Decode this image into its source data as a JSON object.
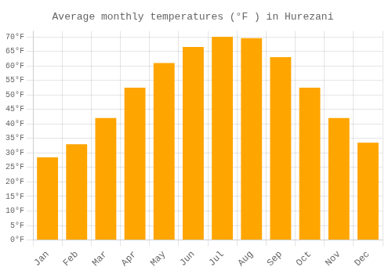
{
  "chart_data": {
    "type": "bar",
    "title": "Average monthly temperatures (°F ) in Hurezani",
    "categories": [
      "Jan",
      "Feb",
      "Mar",
      "Apr",
      "May",
      "Jun",
      "Jul",
      "Aug",
      "Sep",
      "Oct",
      "Nov",
      "Dec"
    ],
    "values": [
      28.5,
      33,
      42,
      52.5,
      61,
      66.5,
      70,
      69.5,
      63,
      52.5,
      42,
      33.5
    ],
    "color": "#FFA500",
    "ylim": [
      0,
      72
    ],
    "yticks": [
      {
        "value": 0,
        "label": "0°F"
      },
      {
        "value": 5,
        "label": "5°F"
      },
      {
        "value": 10,
        "label": "10°F"
      },
      {
        "value": 15,
        "label": "15°F"
      },
      {
        "value": 20,
        "label": "20°F"
      },
      {
        "value": 25,
        "label": "25°F"
      },
      {
        "value": 30,
        "label": "30°F"
      },
      {
        "value": 35,
        "label": "35°F"
      },
      {
        "value": 40,
        "label": "40°F"
      },
      {
        "value": 45,
        "label": "45°F"
      },
      {
        "value": 50,
        "label": "50°F"
      },
      {
        "value": 55,
        "label": "55°F"
      },
      {
        "value": 60,
        "label": "60°F"
      },
      {
        "value": 65,
        "label": "65°F"
      },
      {
        "value": 70,
        "label": "70°F"
      }
    ],
    "grid": true
  }
}
